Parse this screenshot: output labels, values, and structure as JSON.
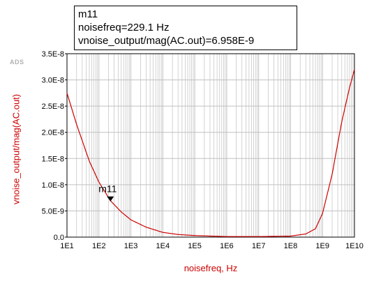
{
  "watermark": "ADS",
  "marker": {
    "name": "m11",
    "line1": "m11",
    "line2": "noisefreq=229.1  Hz",
    "line3": "vnoise_output/mag(AC.out)=6.958E-9",
    "x": 229.1,
    "y": 6.958e-09
  },
  "colors": {
    "curve": "#cc0000",
    "label": "#cc0000",
    "grid": "#c0c0c0",
    "axis": "#000000"
  },
  "chart_data": {
    "type": "line",
    "xscale": "log",
    "xlabel": "noisefreq, Hz",
    "ylabel": "vnoise_output/mag(AC.out)",
    "xlim": [
      10,
      10000000000
    ],
    "ylim": [
      0,
      3.5e-08
    ],
    "grid": true,
    "xticks": [
      10,
      100,
      1000,
      10000,
      100000,
      1000000,
      10000000,
      100000000,
      1000000000,
      10000000000
    ],
    "xtick_labels": [
      "1E1",
      "1E2",
      "1E3",
      "1E4",
      "1E5",
      "1E6",
      "1E7",
      "1E8",
      "1E9",
      "1E10"
    ],
    "yticks": [
      0,
      5e-09,
      1e-08,
      1.5e-08,
      2e-08,
      2.5e-08,
      3e-08,
      3.5e-08
    ],
    "ytick_labels": [
      "0.0",
      "5.0E-9",
      "1.0E-8",
      "1.5E-8",
      "2.0E-8",
      "2.5E-8",
      "3.0E-8",
      "3.5E-8"
    ],
    "series": [
      {
        "x": [
          10,
          20,
          50,
          100,
          229.1,
          500,
          1000,
          3000,
          10000,
          30000,
          100000,
          1000000,
          10000000,
          100000000,
          300000000,
          600000000,
          1000000000,
          2000000000,
          4000000000,
          7000000000,
          10000000000
        ],
        "y": [
          2.75e-08,
          2.15e-08,
          1.45e-08,
          1.05e-08,
          6.958e-09,
          4.8e-09,
          3.3e-09,
          1.9e-09,
          9e-10,
          5e-10,
          3e-10,
          1e-10,
          1e-10,
          2e-10,
          6e-10,
          1.6e-09,
          4.5e-09,
          1.2e-08,
          2.2e-08,
          2.85e-08,
          3.2e-08
        ]
      }
    ]
  }
}
